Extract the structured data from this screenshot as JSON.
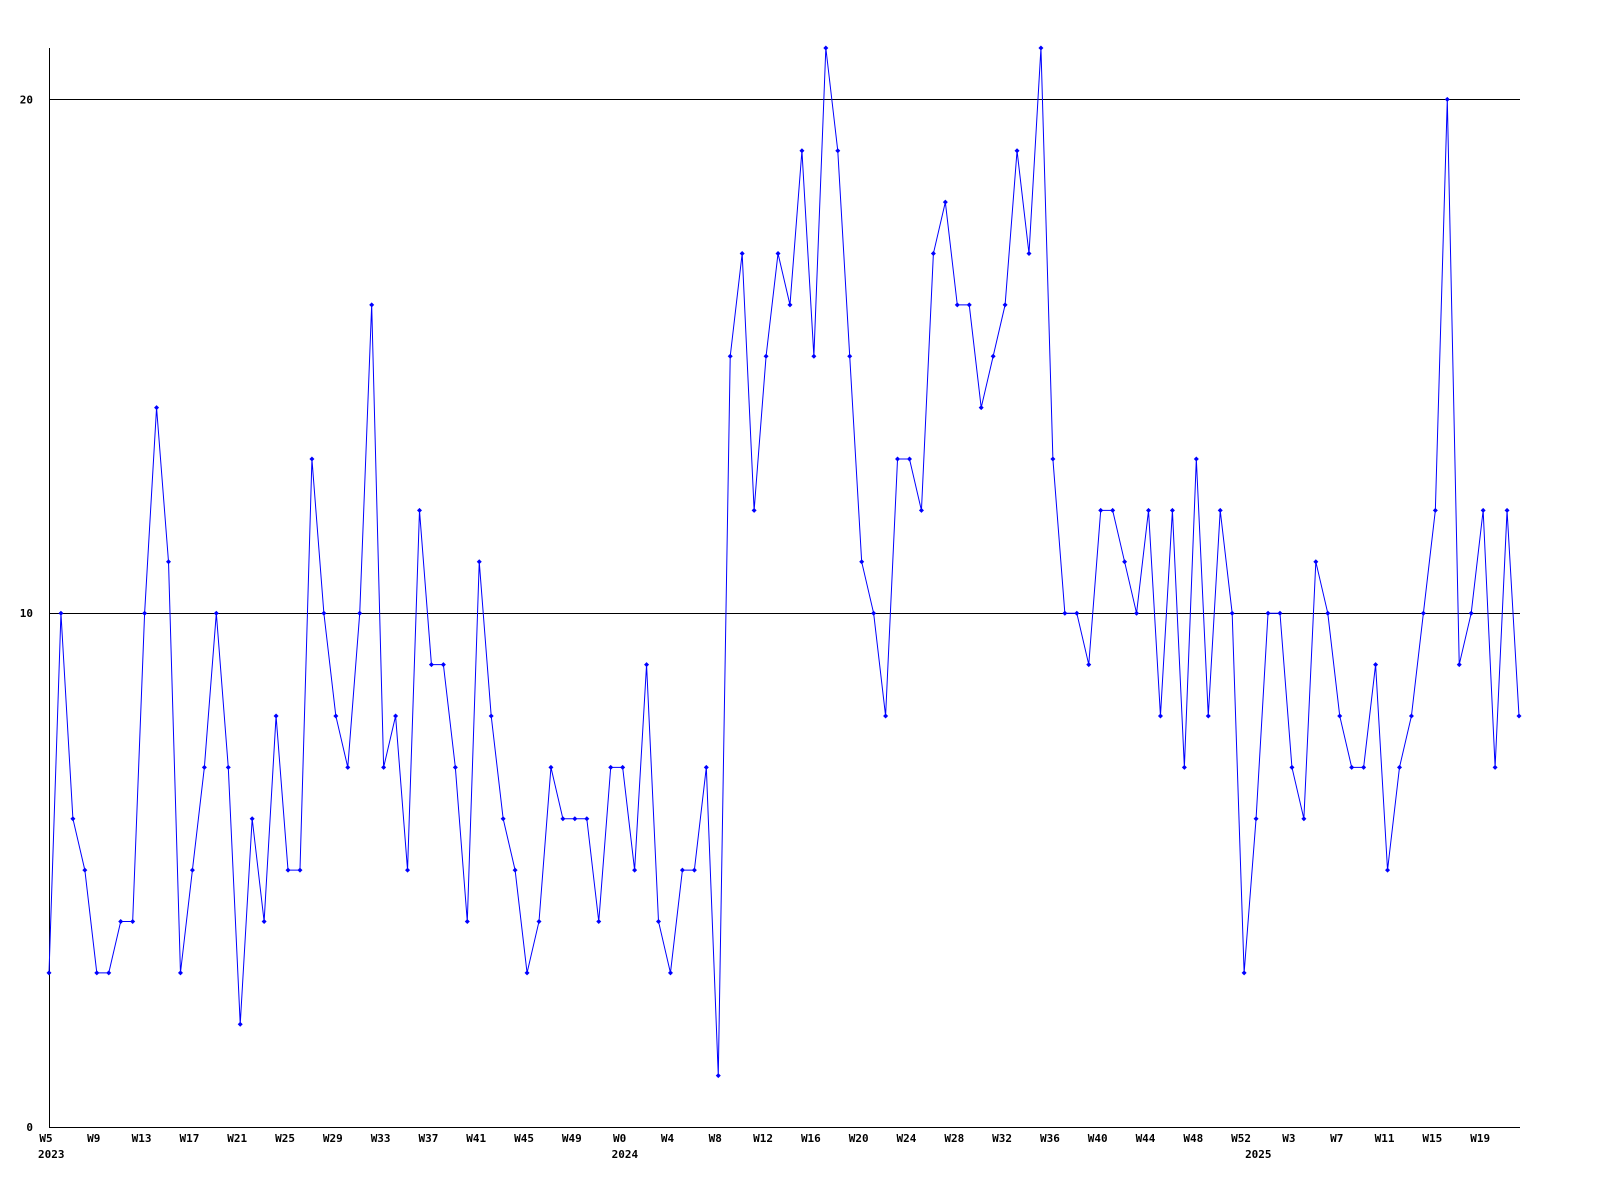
{
  "chart_data": {
    "type": "line",
    "categories": [
      "W5",
      null,
      null,
      null,
      "W9",
      null,
      null,
      null,
      "W13",
      null,
      null,
      null,
      "W17",
      null,
      null,
      null,
      "W21",
      null,
      null,
      null,
      "W25",
      null,
      null,
      null,
      "W29",
      null,
      null,
      null,
      "W33",
      null,
      null,
      null,
      "W37",
      null,
      null,
      null,
      "W41",
      null,
      null,
      null,
      "W45",
      null,
      null,
      null,
      "W49",
      null,
      null,
      null,
      "W0",
      null,
      null,
      null,
      "W4",
      null,
      null,
      null,
      "W8",
      null,
      null,
      null,
      "W12",
      null,
      null,
      null,
      "W16",
      null,
      null,
      null,
      "W20",
      null,
      null,
      null,
      "W24",
      null,
      null,
      null,
      "W28",
      null,
      null,
      null,
      "W32",
      null,
      null,
      null,
      "W36",
      null,
      null,
      null,
      "W40",
      null,
      null,
      null,
      "W44",
      null,
      null,
      null,
      "W48",
      null,
      null,
      null,
      "W52",
      null,
      null,
      null,
      "W3",
      null,
      null,
      null,
      "W7",
      null,
      null,
      null,
      "W11",
      null,
      null,
      null,
      "W15",
      null,
      null,
      null,
      "W19",
      null,
      null,
      null
    ],
    "years": [
      "2023",
      null,
      null,
      null,
      null,
      null,
      null,
      null,
      null,
      null,
      null,
      null,
      null,
      null,
      null,
      null,
      null,
      null,
      null,
      null,
      null,
      null,
      null,
      null,
      null,
      null,
      null,
      null,
      null,
      null,
      null,
      null,
      null,
      null,
      null,
      null,
      null,
      null,
      null,
      null,
      null,
      null,
      null,
      null,
      null,
      null,
      null,
      null,
      "2024",
      null,
      null,
      null,
      null,
      null,
      null,
      null,
      null,
      null,
      null,
      null,
      null,
      null,
      null,
      null,
      null,
      null,
      null,
      null,
      null,
      null,
      null,
      null,
      null,
      null,
      null,
      null,
      null,
      null,
      null,
      null,
      null,
      null,
      null,
      null,
      null,
      null,
      null,
      null,
      null,
      null,
      null,
      null,
      null,
      null,
      null,
      null,
      null,
      null,
      null,
      null,
      null,
      "2025",
      null,
      null,
      null,
      null,
      null,
      null,
      null,
      null,
      null,
      null,
      null,
      null,
      null,
      null,
      null,
      null,
      null,
      null,
      null,
      null,
      null,
      null
    ],
    "values": [
      3,
      10,
      6,
      5,
      3,
      3,
      4,
      4,
      10,
      14,
      11,
      3,
      5,
      7,
      10,
      7,
      2,
      6,
      4,
      8,
      5,
      5,
      13,
      10,
      8,
      7,
      10,
      16,
      7,
      8,
      5,
      12,
      9,
      9,
      7,
      4,
      11,
      8,
      6,
      5,
      3,
      4,
      7,
      6,
      6,
      6,
      4,
      7,
      7,
      5,
      9,
      4,
      3,
      5,
      5,
      7,
      1,
      15,
      17,
      12,
      15,
      17,
      16,
      19,
      15,
      21,
      19,
      15,
      11,
      10,
      8,
      13,
      13,
      12,
      17,
      18,
      16,
      16,
      14,
      15,
      16,
      19,
      17,
      21,
      13,
      10,
      10,
      9,
      12,
      12,
      11,
      10,
      12,
      8,
      12,
      7,
      13,
      8,
      12,
      10,
      3,
      6,
      10,
      10,
      7,
      6,
      11,
      10,
      8,
      7,
      7,
      9,
      5,
      7,
      8,
      10,
      12,
      20,
      9,
      10,
      12,
      7,
      12,
      8
    ],
    "color": "#0000ff",
    "ylim": [
      0,
      21
    ],
    "yticks": [
      0,
      10,
      20
    ],
    "grid": true
  }
}
